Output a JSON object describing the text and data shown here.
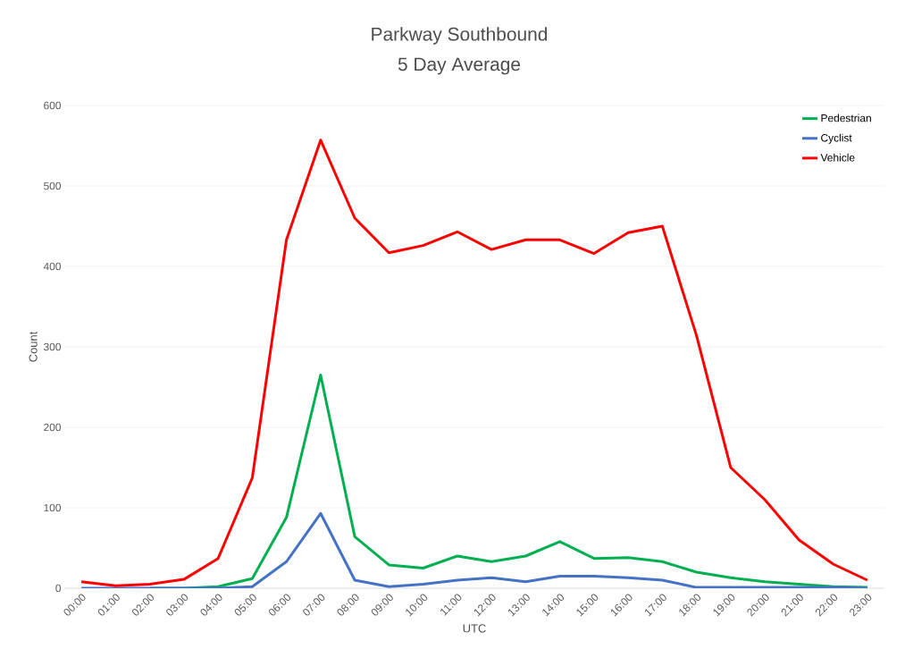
{
  "chart_data": {
    "type": "line",
    "title": "Parkway Southbound",
    "subtitle": "5 Day Average",
    "xlabel": "UTC",
    "ylabel": "Count",
    "categories": [
      "00:00",
      "01:00",
      "02:00",
      "03:00",
      "04:00",
      "05:00",
      "06:00",
      "07:00",
      "08:00",
      "09:00",
      "10:00",
      "11:00",
      "12:00",
      "13:00",
      "14:00",
      "15:00",
      "16:00",
      "17:00",
      "18:00",
      "19:00",
      "20:00",
      "21:00",
      "22:00",
      "23:00"
    ],
    "series": [
      {
        "name": "Pedestrian",
        "color": "#00b050",
        "values": [
          null,
          null,
          0,
          0,
          2,
          12,
          88,
          265,
          64,
          29,
          25,
          40,
          33,
          40,
          58,
          37,
          38,
          33,
          20,
          13,
          8,
          5,
          2,
          1
        ]
      },
      {
        "name": "Cyclist",
        "color": "#4472c4",
        "values": [
          0,
          0,
          0,
          0,
          0,
          2,
          33,
          93,
          10,
          2,
          5,
          10,
          13,
          8,
          15,
          15,
          13,
          10,
          1,
          1,
          1,
          1,
          1,
          0
        ]
      },
      {
        "name": "Vehicle",
        "color": "#ff0000",
        "values": [
          8,
          3,
          5,
          11,
          37,
          137,
          433,
          557,
          460,
          417,
          426,
          443,
          421,
          433,
          433,
          416,
          442,
          450,
          314,
          150,
          110,
          60,
          30,
          10
        ]
      }
    ],
    "ylim": [
      0,
      600
    ],
    "yticks": [
      0,
      100,
      200,
      300,
      400,
      500,
      600
    ],
    "grid": "y",
    "legend": "top right",
    "marker": "none",
    "line_style": "solid"
  }
}
